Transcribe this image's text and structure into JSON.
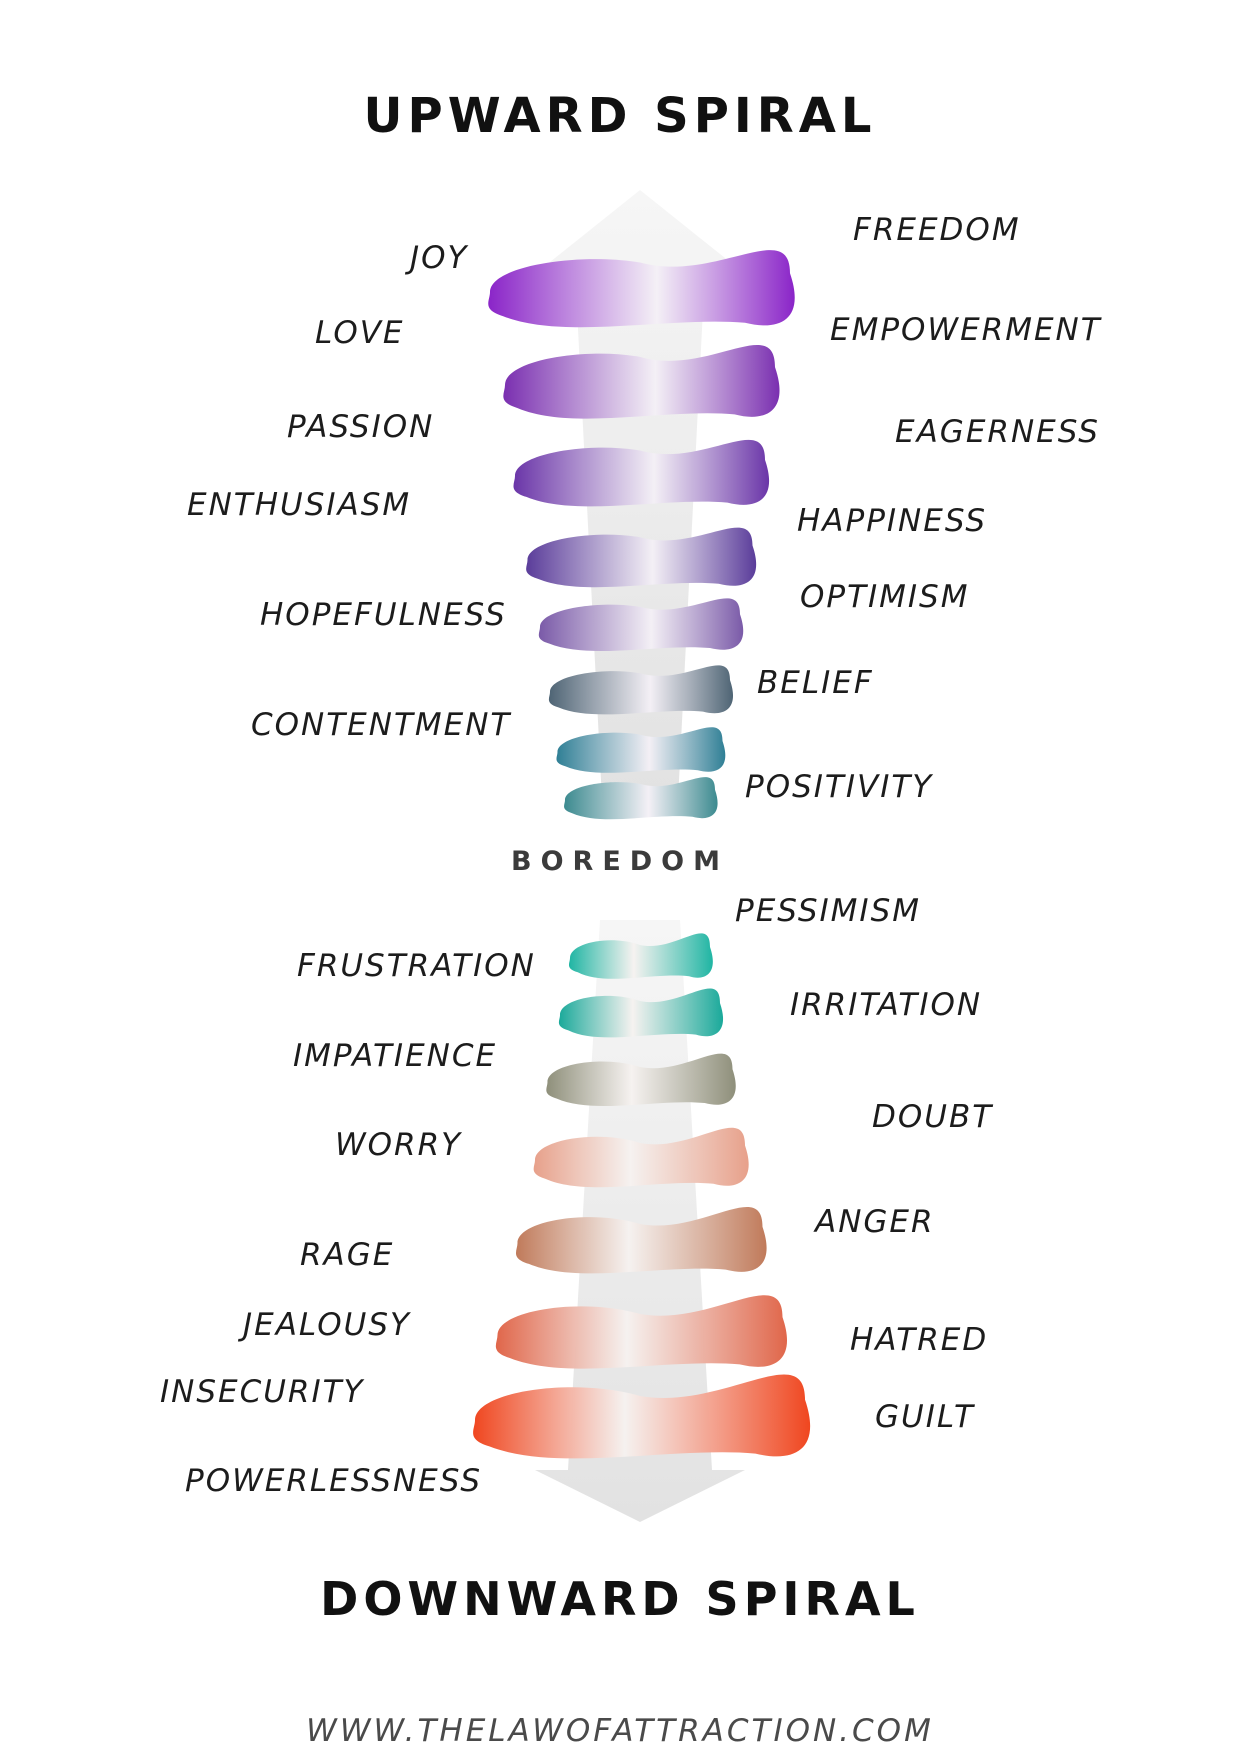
{
  "titles": {
    "upward": "UPWARD SPIRAL",
    "middle": "BOREDOM",
    "downward": "DOWNWARD SPIRAL"
  },
  "upward_labels": {
    "left": [
      "JOY",
      "LOVE",
      "PASSION",
      "ENTHUSIASM",
      "HOPEFULNESS",
      "CONTENTMENT"
    ],
    "right": [
      "FREEDOM",
      "EMPOWERMENT",
      "EAGERNESS",
      "HAPPINESS",
      "OPTIMISM",
      "BELIEF",
      "POSITIVITY"
    ]
  },
  "downward_labels": {
    "left": [
      "FRUSTRATION",
      "IMPATIENCE",
      "WORRY",
      "RAGE",
      "JEALOUSY",
      "INSECURITY",
      "POWERLESSNESS"
    ],
    "right": [
      "PESSIMISM",
      "IRRITATION",
      "DOUBT",
      "ANGER",
      "HATRED",
      "GUILT"
    ]
  },
  "footer": "WWW.THELAWOFATTRACTION.COM",
  "colors": {
    "upward_spiral": [
      "#8a24c8",
      "#7a2fb0",
      "#6a35a8",
      "#5a3c9a",
      "#7a5aa8",
      "#4e6474",
      "#2f7f95",
      "#3b8a8f"
    ],
    "downward_spiral": [
      "#1fb5a3",
      "#1aa99a",
      "#8e8f7a",
      "#e7a08a",
      "#c07a5a",
      "#e0664a",
      "#f0461f"
    ],
    "arrow": "#eeeeee"
  }
}
